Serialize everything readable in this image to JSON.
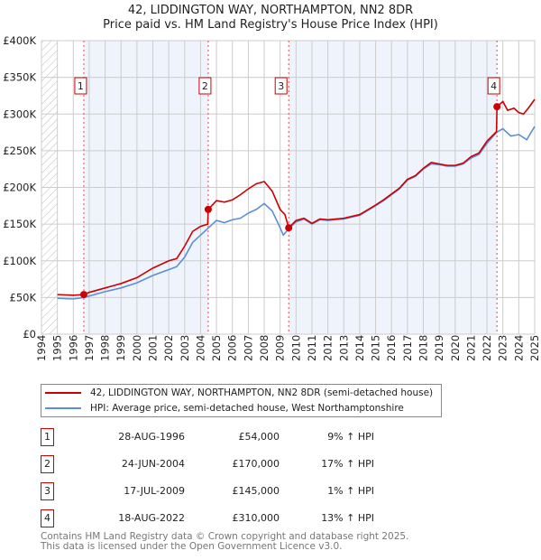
{
  "chart_data": {
    "type": "line",
    "title": "42, LIDDINGTON WAY, NORTHAMPTON, NN2 8DR",
    "subtitle": "Price paid vs. HM Land Registry's House Price Index (HPI)",
    "xlim": [
      1994,
      2025
    ],
    "ylim": [
      0,
      400000
    ],
    "x_ticks": [
      "1994",
      "1995",
      "1996",
      "1997",
      "1998",
      "1999",
      "2000",
      "2001",
      "2002",
      "2003",
      "2004",
      "2005",
      "2006",
      "2007",
      "2008",
      "2009",
      "2010",
      "2011",
      "2012",
      "2013",
      "2014",
      "2015",
      "2016",
      "2017",
      "2018",
      "2019",
      "2020",
      "2021",
      "2022",
      "2023",
      "2024",
      "2025"
    ],
    "y_ticks": [
      {
        "v": 0,
        "label": "£0"
      },
      {
        "v": 50000,
        "label": "£50K"
      },
      {
        "v": 100000,
        "label": "£100K"
      },
      {
        "v": 150000,
        "label": "£150K"
      },
      {
        "v": 200000,
        "label": "£200K"
      },
      {
        "v": 250000,
        "label": "£250K"
      },
      {
        "v": 300000,
        "label": "£300K"
      },
      {
        "v": 350000,
        "label": "£350K"
      },
      {
        "v": 400000,
        "label": "£400K"
      }
    ],
    "grid": true,
    "series": [
      {
        "name": "42, LIDDINGTON WAY, NORTHAMPTON, NN2 8DR (semi-detached house)",
        "color": "#cc0000",
        "points": [
          [
            1995,
            54000
          ],
          [
            1996,
            53000
          ],
          [
            1996.66,
            54000
          ],
          [
            1997,
            57000
          ],
          [
            1998,
            63000
          ],
          [
            1999,
            69000
          ],
          [
            2000,
            77000
          ],
          [
            2001,
            90000
          ],
          [
            2002,
            100000
          ],
          [
            2002.5,
            103000
          ],
          [
            2003,
            120000
          ],
          [
            2003.5,
            140000
          ],
          [
            2004,
            147000
          ],
          [
            2004.45,
            150000
          ],
          [
            2004.48,
            170000
          ],
          [
            2005,
            182000
          ],
          [
            2005.5,
            180000
          ],
          [
            2006,
            183000
          ],
          [
            2006.5,
            190000
          ],
          [
            2007,
            198000
          ],
          [
            2007.5,
            205000
          ],
          [
            2008,
            208000
          ],
          [
            2008.5,
            195000
          ],
          [
            2009,
            170000
          ],
          [
            2009.3,
            163000
          ],
          [
            2009.54,
            145000
          ],
          [
            2010,
            155000
          ],
          [
            2010.5,
            158000
          ],
          [
            2011,
            151000
          ],
          [
            2011.5,
            157000
          ],
          [
            2012,
            156000
          ],
          [
            2013,
            158000
          ],
          [
            2014,
            163000
          ],
          [
            2015,
            176000
          ],
          [
            2015.5,
            183000
          ],
          [
            2016,
            191000
          ],
          [
            2016.5,
            199000
          ],
          [
            2017,
            211000
          ],
          [
            2017.5,
            216000
          ],
          [
            2018,
            226000
          ],
          [
            2018.5,
            234000
          ],
          [
            2019,
            232000
          ],
          [
            2019.5,
            230000
          ],
          [
            2020,
            230000
          ],
          [
            2020.5,
            233000
          ],
          [
            2021,
            242000
          ],
          [
            2021.5,
            247000
          ],
          [
            2022,
            263000
          ],
          [
            2022.6,
            276000
          ],
          [
            2022.63,
            310000
          ],
          [
            2023,
            317000
          ],
          [
            2023.3,
            305000
          ],
          [
            2023.7,
            308000
          ],
          [
            2024,
            302000
          ],
          [
            2024.3,
            300000
          ],
          [
            2024.6,
            308000
          ],
          [
            2025,
            320000
          ]
        ]
      },
      {
        "name": "HPI: Average price, semi-detached house, West Northamptonshire",
        "color": "#5b8fd6",
        "points": [
          [
            1995,
            49000
          ],
          [
            1996,
            48000
          ],
          [
            1996.66,
            50000
          ],
          [
            1997,
            52000
          ],
          [
            1998,
            58000
          ],
          [
            1999,
            63000
          ],
          [
            2000,
            70000
          ],
          [
            2001,
            80000
          ],
          [
            2002,
            88000
          ],
          [
            2002.5,
            92000
          ],
          [
            2003,
            105000
          ],
          [
            2003.5,
            125000
          ],
          [
            2004,
            135000
          ],
          [
            2004.5,
            145000
          ],
          [
            2005,
            155000
          ],
          [
            2005.5,
            152000
          ],
          [
            2006,
            156000
          ],
          [
            2006.5,
            158000
          ],
          [
            2007,
            165000
          ],
          [
            2007.5,
            170000
          ],
          [
            2008,
            178000
          ],
          [
            2008.5,
            168000
          ],
          [
            2009,
            145000
          ],
          [
            2009.2,
            135000
          ],
          [
            2009.6,
            145000
          ],
          [
            2010,
            153000
          ],
          [
            2010.5,
            157000
          ],
          [
            2011,
            150000
          ],
          [
            2011.5,
            156000
          ],
          [
            2012,
            155000
          ],
          [
            2013,
            157000
          ],
          [
            2014,
            162000
          ],
          [
            2015,
            175000
          ],
          [
            2015.5,
            182000
          ],
          [
            2016,
            190000
          ],
          [
            2016.5,
            198000
          ],
          [
            2017,
            210000
          ],
          [
            2017.5,
            215000
          ],
          [
            2018,
            225000
          ],
          [
            2018.5,
            232000
          ],
          [
            2019,
            231000
          ],
          [
            2019.5,
            229000
          ],
          [
            2020,
            229000
          ],
          [
            2020.5,
            232000
          ],
          [
            2021,
            240000
          ],
          [
            2021.5,
            245000
          ],
          [
            2022,
            260000
          ],
          [
            2022.6,
            275000
          ],
          [
            2023,
            280000
          ],
          [
            2023.5,
            270000
          ],
          [
            2024,
            272000
          ],
          [
            2024.5,
            265000
          ],
          [
            2025,
            283000
          ]
        ]
      }
    ],
    "sales": [
      {
        "n": "1",
        "x": 1996.66,
        "price": 54000,
        "date": "28-AUG-1996",
        "price_label": "£54,000",
        "delta": "9% ↑ HPI"
      },
      {
        "n": "2",
        "x": 2004.48,
        "price": 170000,
        "date": "24-JUN-2004",
        "price_label": "£170,000",
        "delta": "17% ↑ HPI"
      },
      {
        "n": "3",
        "x": 2009.54,
        "price": 145000,
        "date": "17-JUL-2009",
        "price_label": "£145,000",
        "delta": "1% ↑ HPI"
      },
      {
        "n": "4",
        "x": 2022.63,
        "price": 310000,
        "date": "18-AUG-2022",
        "price_label": "£310,000",
        "delta": "13% ↑ HPI"
      }
    ]
  },
  "footer": {
    "line1": "Contains HM Land Registry data © Crown copyright and database right 2025.",
    "line2": "This data is licensed under the Open Government Licence v3.0."
  }
}
